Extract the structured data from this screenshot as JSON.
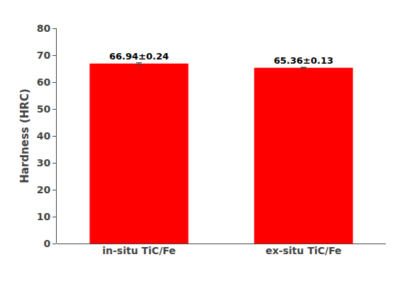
{
  "chart_data": {
    "type": "bar",
    "categories": [
      "in-situ TiC/Fe",
      "ex-situ TiC/Fe"
    ],
    "values": [
      66.94,
      65.36
    ],
    "errors": [
      0.24,
      0.13
    ],
    "value_labels": [
      "66.94±0.24",
      "65.36±0.13"
    ],
    "data_labels": true,
    "color": "#FF0000",
    "ylabel": "Hardness (HRC)",
    "ylim": [
      0,
      80
    ],
    "yticks": [
      0,
      10,
      20,
      30,
      40,
      50,
      60,
      70,
      80
    ],
    "grid": false
  }
}
